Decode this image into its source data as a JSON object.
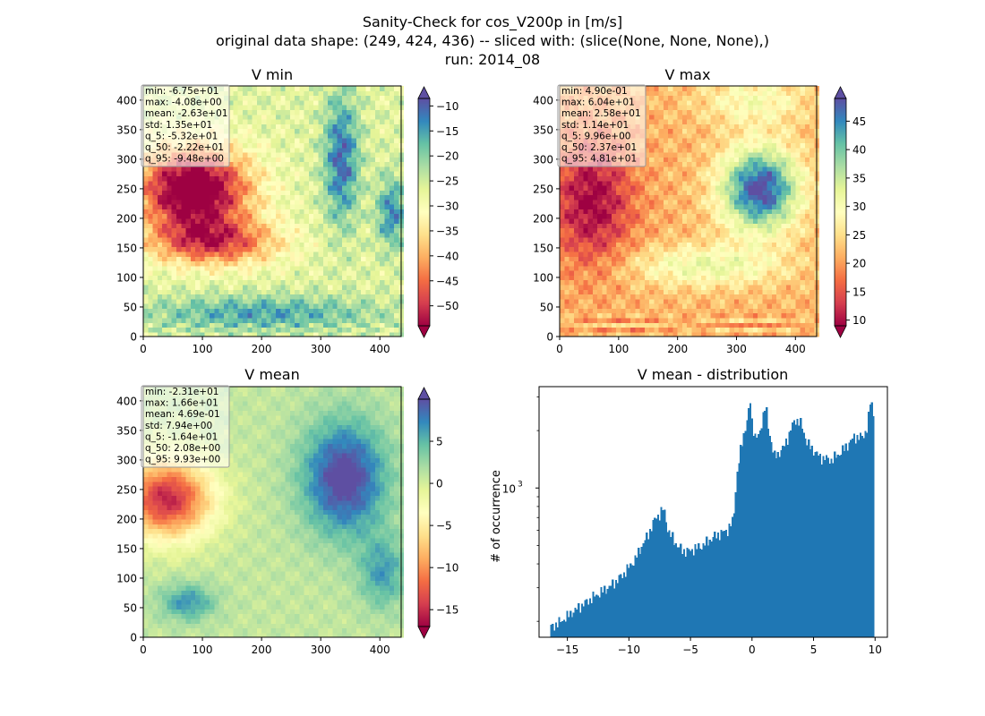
{
  "figure": {
    "title_lines": [
      "Sanity-Check for cos_V200p in [m/s]",
      "original data shape: (249, 424, 436) -- sliced with: (slice(None, None, None),)",
      "run: 2014_08"
    ]
  },
  "colormap": {
    "name": "Spectral",
    "stops": [
      "#9e0142",
      "#d53e4f",
      "#f46d43",
      "#fdae61",
      "#fee08b",
      "#ffffbf",
      "#e6f598",
      "#abdda4",
      "#66c2a5",
      "#3288bd",
      "#5e4fa2"
    ]
  },
  "chart_data": [
    {
      "type": "heatmap",
      "title": "V min",
      "xlim": [
        0,
        436
      ],
      "ylim": [
        0,
        424
      ],
      "xticks": [
        0,
        100,
        200,
        300,
        400
      ],
      "yticks": [
        0,
        50,
        100,
        150,
        200,
        250,
        300,
        350,
        400
      ],
      "colorbar": {
        "range": [
          -54,
          -8.5
        ],
        "ticks": [
          -50,
          -45,
          -40,
          -35,
          -30,
          -25,
          -20,
          -15,
          -10
        ],
        "extend": "both"
      },
      "stats": [
        "min: -6.75e+01",
        "max: -4.08e+00",
        "mean: -2.63e+01",
        "std: 1.35e+01",
        "q_5: -5.32e+01",
        "q_50: -2.22e+01",
        "q_95: -9.48e+00"
      ]
    },
    {
      "type": "heatmap",
      "title": "V max",
      "xlim": [
        0,
        436
      ],
      "ylim": [
        0,
        424
      ],
      "xticks": [
        0,
        100,
        200,
        300,
        400
      ],
      "yticks": [
        0,
        50,
        100,
        150,
        200,
        250,
        300,
        350,
        400
      ],
      "colorbar": {
        "range": [
          9,
          49
        ],
        "ticks": [
          10,
          15,
          20,
          25,
          30,
          35,
          40,
          45
        ],
        "extend": "both"
      },
      "stats": [
        "min: 4.90e-01",
        "max: 6.04e+01",
        "mean: 2.58e+01",
        "std: 1.14e+01",
        "q_5: 9.96e+00",
        "q_50: 2.37e+01",
        "q_95: 4.81e+01"
      ]
    },
    {
      "type": "heatmap",
      "title": "V mean",
      "xlim": [
        0,
        436
      ],
      "ylim": [
        0,
        424
      ],
      "xticks": [
        0,
        100,
        200,
        300,
        400
      ],
      "yticks": [
        0,
        50,
        100,
        150,
        200,
        250,
        300,
        350,
        400
      ],
      "colorbar": {
        "range": [
          -17,
          10
        ],
        "ticks": [
          -15,
          -10,
          -5,
          0,
          5
        ],
        "extend": "both"
      },
      "stats": [
        "min: -2.31e+01",
        "max: 1.66e+01",
        "mean: 4.69e-01",
        "std: 7.94e+00",
        "q_5: -1.64e+01",
        "q_50: 2.08e+00",
        "q_95: 9.93e+00"
      ]
    },
    {
      "type": "bar",
      "title": "V mean - distribution",
      "xlabel": "",
      "ylabel": "# of occurrence",
      "xlim": [
        -17.3,
        11.0
      ],
      "xticks": [
        -15,
        -10,
        -5,
        0,
        5,
        10
      ],
      "ytick_label": "10",
      "ytick_exp": "3",
      "ytick_value": 1000,
      "yscale": "log",
      "ylim": [
        165,
        3400
      ],
      "bar_color": "#1f77b4",
      "bin_edges_range": [
        -16.4,
        9.93
      ],
      "profile": [
        [
          -16.4,
          185
        ],
        [
          -15.5,
          200
        ],
        [
          -14.5,
          225
        ],
        [
          -13.0,
          265
        ],
        [
          -11.5,
          305
        ],
        [
          -10.5,
          350
        ],
        [
          -9.5,
          420
        ],
        [
          -8.5,
          560
        ],
        [
          -7.8,
          700
        ],
        [
          -7.5,
          730
        ],
        [
          -7.2,
          780
        ],
        [
          -6.8,
          590
        ],
        [
          -6.0,
          490
        ],
        [
          -5.5,
          465
        ],
        [
          -5.0,
          470
        ],
        [
          -4.0,
          500
        ],
        [
          -3.0,
          560
        ],
        [
          -2.0,
          600
        ],
        [
          -1.5,
          680
        ],
        [
          -1.2,
          1200
        ],
        [
          -0.9,
          1600
        ],
        [
          -0.6,
          2000
        ],
        [
          -0.3,
          2400
        ],
        [
          -0.15,
          2900
        ],
        [
          0.0,
          2200
        ],
        [
          0.3,
          1800
        ],
        [
          0.6,
          1900
        ],
        [
          0.9,
          2400
        ],
        [
          1.1,
          2700
        ],
        [
          1.3,
          2100
        ],
        [
          1.8,
          1450
        ],
        [
          2.5,
          1600
        ],
        [
          3.0,
          1900
        ],
        [
          3.5,
          2300
        ],
        [
          4.0,
          2150
        ],
        [
          4.5,
          1700
        ],
        [
          5.5,
          1450
        ],
        [
          6.5,
          1400
        ],
        [
          7.5,
          1600
        ],
        [
          8.3,
          1850
        ],
        [
          9.0,
          1850
        ],
        [
          9.4,
          2100
        ],
        [
          9.65,
          2950
        ],
        [
          9.85,
          2500
        ],
        [
          9.93,
          2300
        ]
      ]
    }
  ]
}
